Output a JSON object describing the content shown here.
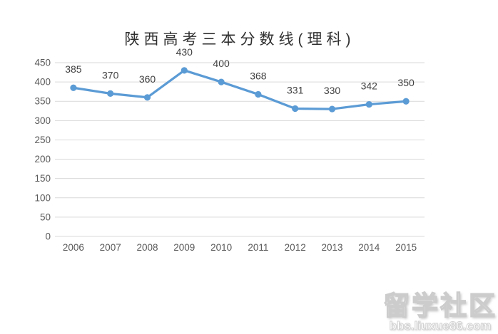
{
  "chart_data": {
    "type": "line",
    "title": "陕西高考三本分数线(理科)",
    "categories": [
      "2006",
      "2007",
      "2008",
      "2009",
      "2010",
      "2011",
      "2012",
      "2013",
      "2014",
      "2015"
    ],
    "values": [
      385,
      370,
      360,
      430,
      400,
      368,
      331,
      330,
      342,
      350
    ],
    "data_labels": [
      "385",
      "370",
      "360",
      "430",
      "400",
      "368",
      "331",
      "330",
      "342",
      "350"
    ],
    "y_ticks": [
      "450",
      "400",
      "350",
      "300",
      "250",
      "200",
      "150",
      "100",
      "50",
      "0"
    ],
    "ylim": [
      0,
      450
    ],
    "ytick_step": 50,
    "xlabel": "",
    "ylabel": "",
    "grid": "horizontal",
    "legend": "none",
    "colors": {
      "line": "#5b9bd5",
      "marker": "#5b9bd5",
      "gridline": "#d9d9d9",
      "axis_text": "#595959",
      "data_label_text": "#404040",
      "title_text": "#303030",
      "background": "#ffffff"
    }
  },
  "watermark": {
    "text": "留学社区",
    "subtext": "bbs.liuxue86.com"
  }
}
